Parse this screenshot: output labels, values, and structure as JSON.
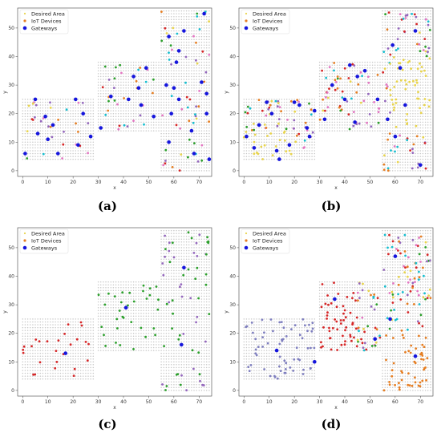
{
  "figure": {
    "panel_labels": [
      "(a)",
      "(b)",
      "(c)",
      "(d)"
    ]
  },
  "chart_data": [
    {
      "type": "scatter",
      "panel": "(a)",
      "xlabel": "x",
      "ylabel": "y",
      "xlim": [
        -2,
        75
      ],
      "ylim": [
        -2,
        57
      ],
      "xticks": [
        0,
        10,
        20,
        30,
        40,
        50,
        60,
        70
      ],
      "yticks": [
        0,
        10,
        20,
        30,
        40,
        50
      ],
      "legend": [
        "Desired Area",
        "IoT Devices",
        "Gateways"
      ],
      "legend_position": "upper-left",
      "colors": {
        "area": "#cccccc",
        "gateway": "#1414dc",
        "devices": [
          "#e8d44d",
          "#e67e22",
          "#2ca02c",
          "#d62728",
          "#9467bd",
          "#e377c2",
          "#17becf"
        ]
      },
      "series": [
        {
          "name": "Gateways",
          "points": [
            [
              5,
              25
            ],
            [
              21,
              25
            ],
            [
              9,
              19
            ],
            [
              12,
              16
            ],
            [
              6,
              13
            ],
            [
              1,
              6
            ],
            [
              10,
              11
            ],
            [
              22,
              9
            ],
            [
              14,
              6
            ],
            [
              27,
              12
            ],
            [
              31,
              15
            ],
            [
              24,
              20
            ],
            [
              35,
              26
            ],
            [
              42,
              25
            ],
            [
              44,
              33
            ],
            [
              49,
              36
            ],
            [
              47,
              23
            ],
            [
              52,
              19
            ],
            [
              46,
              29
            ],
            [
              57,
              30
            ],
            [
              60,
              29
            ],
            [
              71,
              31
            ],
            [
              73,
              27
            ],
            [
              62,
              42
            ],
            [
              64,
              49
            ],
            [
              58,
              47
            ],
            [
              72,
              55
            ],
            [
              62,
              25
            ],
            [
              67,
              14
            ],
            [
              74,
              4
            ],
            [
              59,
              20
            ],
            [
              68,
              6
            ],
            [
              61,
              38
            ],
            [
              73,
              20
            ],
            [
              58,
              10
            ]
          ]
        }
      ]
    },
    {
      "type": "scatter",
      "panel": "(b)",
      "xlabel": "x",
      "ylabel": "y",
      "xlim": [
        -2,
        75
      ],
      "ylim": [
        -2,
        57
      ],
      "xticks": [
        0,
        10,
        20,
        30,
        40,
        50,
        60,
        70
      ],
      "yticks": [
        0,
        10,
        20,
        30,
        40,
        50
      ],
      "legend": [
        "Desired Area",
        "IoT Devices",
        "Gateways"
      ],
      "legend_position": "upper-left",
      "series": [
        {
          "name": "Gateways",
          "points": [
            [
              1,
              12
            ],
            [
              6,
              16
            ],
            [
              9,
              24
            ],
            [
              13,
              7
            ],
            [
              14,
              4
            ],
            [
              18,
              9
            ],
            [
              20,
              24
            ],
            [
              22,
              23
            ],
            [
              25,
              15
            ],
            [
              28,
              21
            ],
            [
              32,
              18
            ],
            [
              35,
              30
            ],
            [
              40,
              25
            ],
            [
              42,
              37
            ],
            [
              45,
              33
            ],
            [
              48,
              35
            ],
            [
              44,
              17
            ],
            [
              53,
              25
            ],
            [
              60,
              12
            ],
            [
              64,
              23
            ],
            [
              70,
              2
            ],
            [
              68,
              49
            ],
            [
              59,
              44
            ],
            [
              62,
              36
            ],
            [
              57,
              18
            ],
            [
              26,
              12
            ],
            [
              11,
              20
            ],
            [
              4,
              8
            ]
          ]
        }
      ]
    },
    {
      "type": "scatter",
      "panel": "(c)",
      "xlabel": "x",
      "ylabel": "y",
      "xlim": [
        -2,
        75
      ],
      "ylim": [
        -2,
        57
      ],
      "xticks": [
        0,
        10,
        20,
        30,
        40,
        50,
        60,
        70
      ],
      "yticks": [
        0,
        10,
        20,
        30,
        40,
        50
      ],
      "legend": [
        "Desired Area",
        "IoT Devices",
        "Gateways"
      ],
      "legend_position": "upper-left",
      "series": [
        {
          "name": "Gateways",
          "points": [
            [
              41,
              29
            ],
            [
              64,
              43
            ],
            [
              63,
              16
            ],
            [
              17,
              13
            ]
          ]
        }
      ]
    },
    {
      "type": "scatter",
      "panel": "(d)",
      "xlabel": "x",
      "ylabel": "y",
      "xlim": [
        -2,
        75
      ],
      "ylim": [
        -2,
        57
      ],
      "xticks": [
        0,
        10,
        20,
        30,
        40,
        50,
        60,
        70
      ],
      "yticks": [
        0,
        10,
        20,
        30,
        40,
        50
      ],
      "legend": [
        "Desired Area",
        "IoT Devices",
        "Gateways"
      ],
      "legend_position": "upper-left",
      "series": [
        {
          "name": "Gateways",
          "points": [
            [
              60,
              47
            ],
            [
              58,
              25
            ],
            [
              36,
              32
            ],
            [
              52,
              18
            ],
            [
              68,
              12
            ],
            [
              13,
              14
            ],
            [
              28,
              10
            ]
          ]
        }
      ]
    }
  ]
}
